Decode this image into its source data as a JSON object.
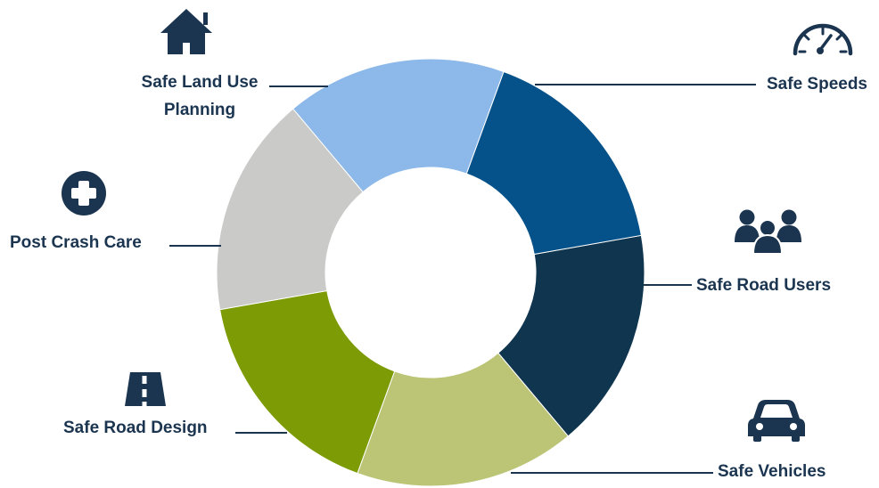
{
  "diagram": {
    "segments": [
      {
        "key": "safe-speeds",
        "label": [
          "Safe Speeds"
        ],
        "color": "#10354f",
        "icon": "speedometer-icon"
      },
      {
        "key": "safe-road-users",
        "label": [
          "Safe Road Users"
        ],
        "color": "#bcc476",
        "icon": "people-group-icon"
      },
      {
        "key": "safe-vehicles",
        "label": [
          "Safe Vehicles"
        ],
        "color": "#7c9b05",
        "icon": "car-icon"
      },
      {
        "key": "safe-road-design",
        "label": [
          "Safe Road Design"
        ],
        "color": "#cacbc8",
        "icon": "road-icon"
      },
      {
        "key": "post-crash-care",
        "label": [
          "Post Crash Care"
        ],
        "color": "#8cb8ea",
        "icon": "medical-cross-icon"
      },
      {
        "key": "safe-land-use-planning",
        "label": [
          "Safe Land Use",
          "Planning"
        ],
        "color": "#05528a",
        "icon": "house-icon"
      }
    ],
    "text_color": "#1b3550",
    "line_color": "#1b3550"
  }
}
